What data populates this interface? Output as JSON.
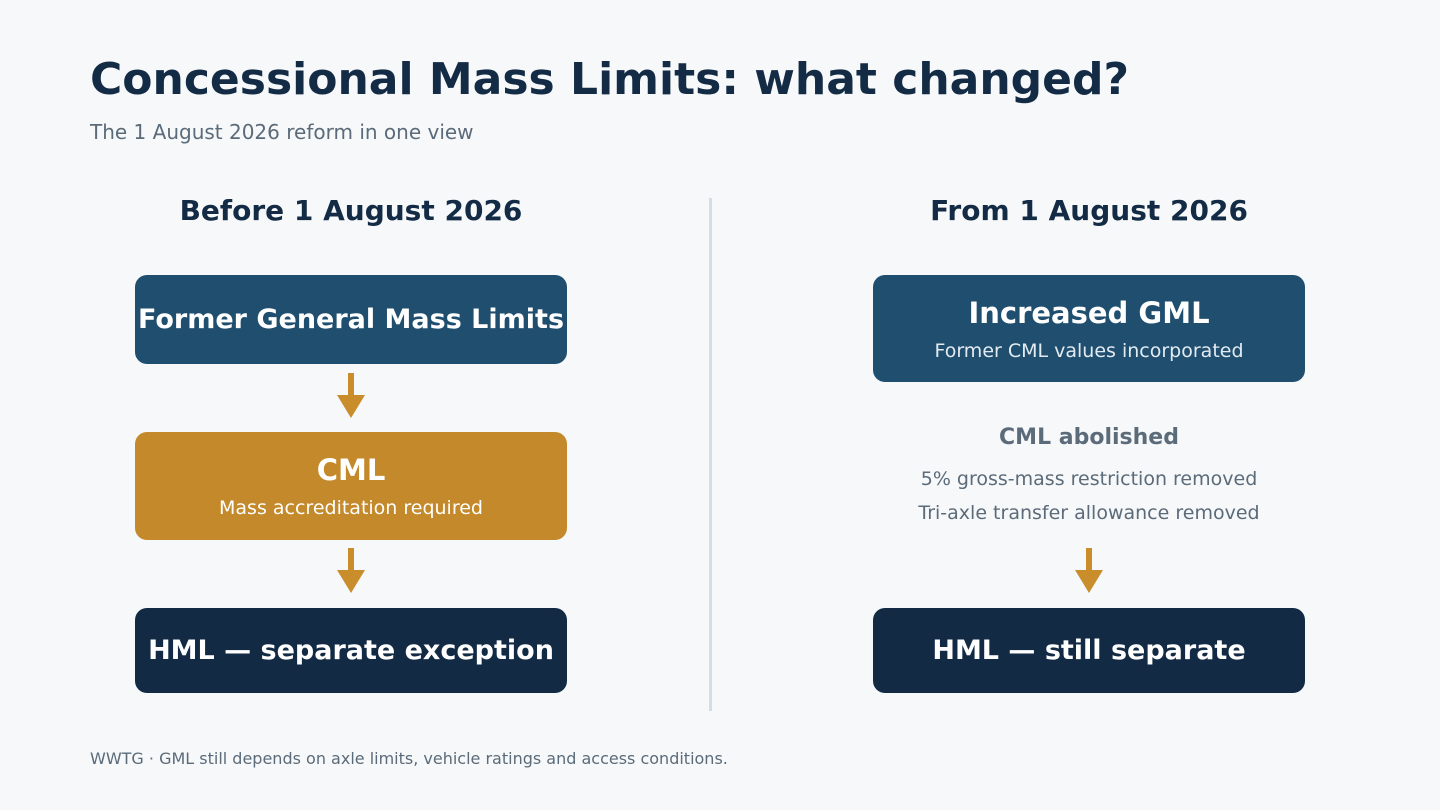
{
  "header": {
    "title": "Concessional Mass Limits: what changed?",
    "subtitle": "The 1 August 2026 reform in one view"
  },
  "left": {
    "heading": "Before 1 August 2026",
    "box1_title": "Former General Mass Limits",
    "box2_title": "CML",
    "box2_sub": "Mass accreditation required",
    "box3_title": "HML — separate exception"
  },
  "right": {
    "heading": "From 1 August 2026",
    "box1_title": "Increased GML",
    "box1_sub": "Former CML values incorporated",
    "note_title": "CML abolished",
    "note_line1": "5% gross-mass restriction removed",
    "note_line2": "Tri-axle transfer allowance removed",
    "box2_title": "HML — still separate"
  },
  "footer": {
    "text": "WWTG · GML still depends on axle limits, vehicle ratings and access conditions."
  },
  "colors": {
    "background": "#f6f8fa",
    "title": "#132b45",
    "muted_text": "#5b6b79",
    "blue_box": "#1f4e6f",
    "amber_box": "#c3892a",
    "navy_box": "#122a44",
    "arrow": "#c98d2c",
    "divider": "#d3dde6"
  },
  "icons": {
    "arrow": "arrow-down-icon"
  }
}
